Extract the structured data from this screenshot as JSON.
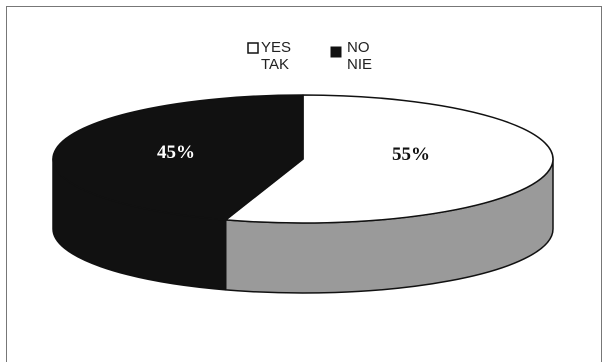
{
  "chart_data": {
    "type": "pie",
    "style": "3d",
    "title": "",
    "legend_position": "top-center",
    "series": [
      {
        "legend": [
          "YES",
          "TAK"
        ],
        "label": "55%",
        "value": 55,
        "color": "#ffffff",
        "side_color": "#9a9a9a",
        "label_color": "#111111"
      },
      {
        "legend": [
          "NO",
          "NIE"
        ],
        "label": "45%",
        "value": 45,
        "color": "#111111",
        "side_color": "#111111",
        "label_color": "#ffffff"
      }
    ]
  }
}
